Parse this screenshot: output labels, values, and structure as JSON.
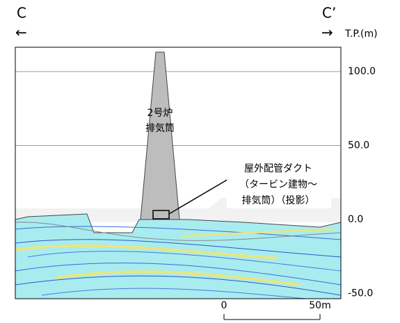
{
  "header": {
    "left_label": "C",
    "right_label": "C’",
    "left_arrow": "←",
    "right_arrow": "→"
  },
  "axis": {
    "title": "T.P.(m)",
    "yticks": [
      {
        "value": 100,
        "label": "100.0"
      },
      {
        "value": 50,
        "label": "50.0"
      },
      {
        "value": 0,
        "label": "0.0"
      },
      {
        "value": -50,
        "label": "-50.0"
      }
    ]
  },
  "labels": {
    "stack": [
      "2号炉",
      "排気筒"
    ],
    "duct": [
      "屋外配管ダクト",
      "（タービン建物～",
      "排気筒）（投影）"
    ]
  },
  "scale": {
    "ticks": [
      0,
      {
        "value": 50,
        "label": "50m"
      }
    ]
  }
}
